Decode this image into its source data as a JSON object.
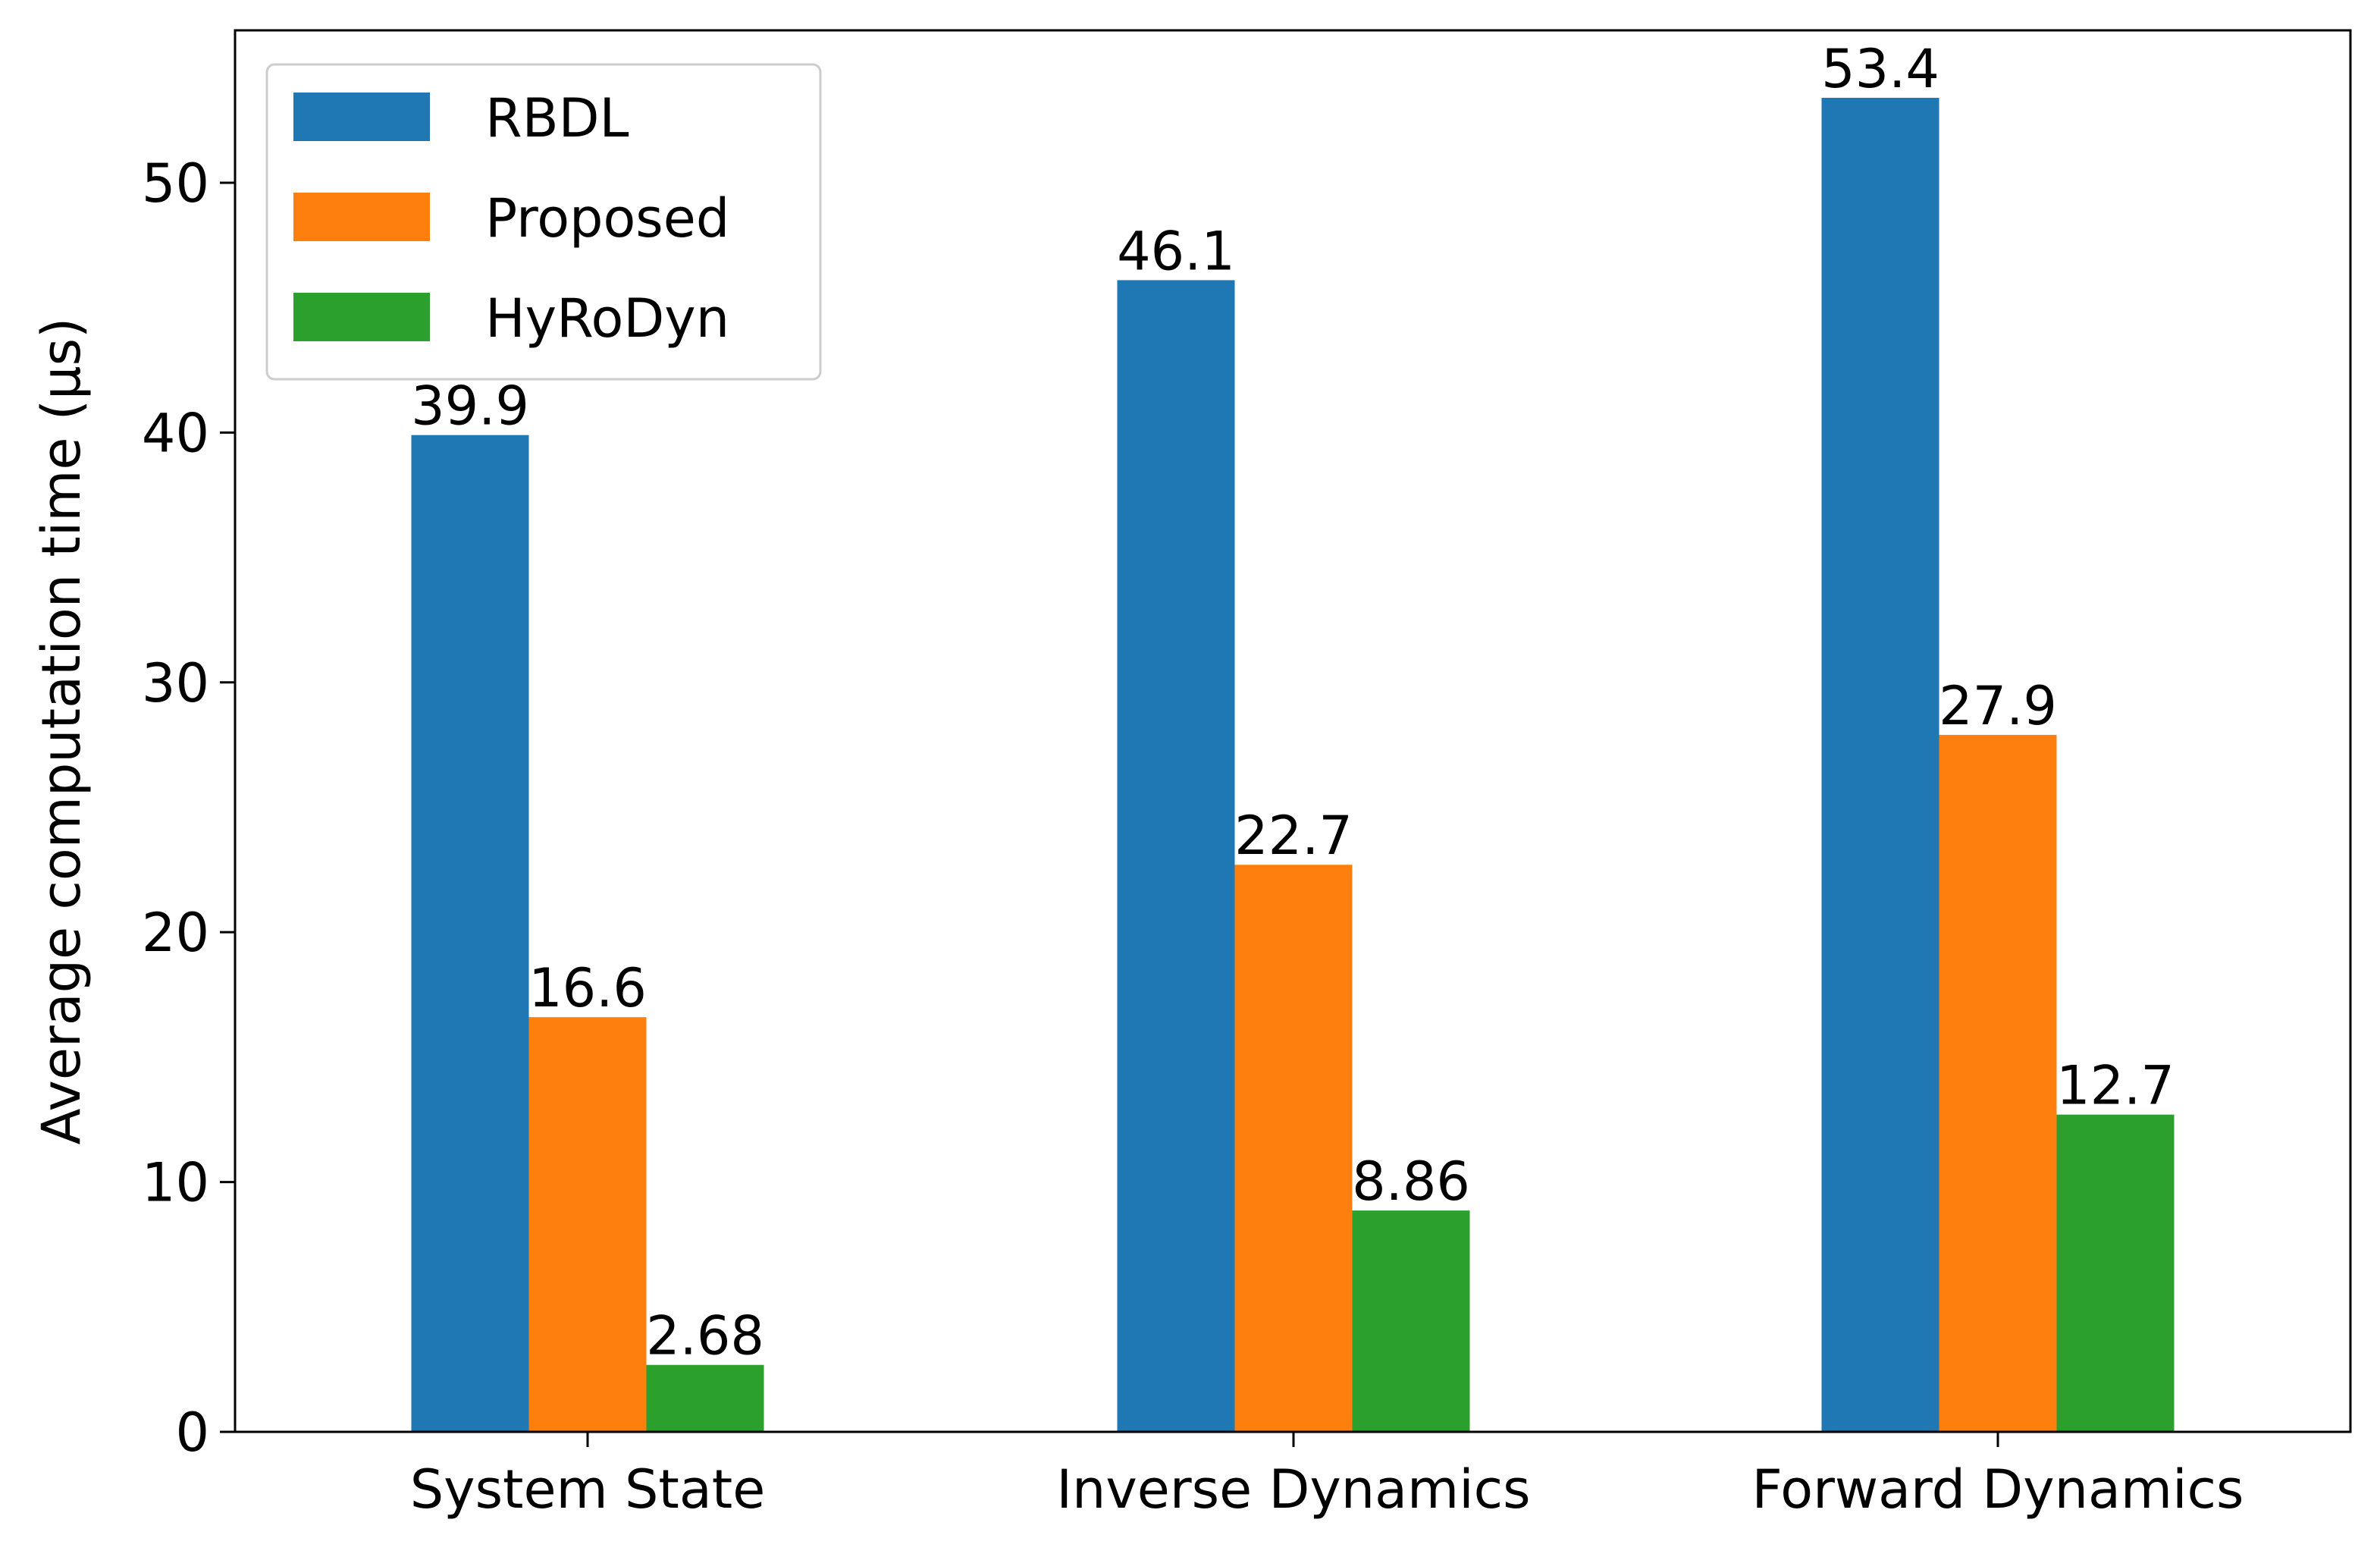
{
  "chart_data": {
    "type": "bar",
    "title": "",
    "xlabel": "",
    "ylabel": "Average computation time (μs)",
    "categories": [
      "System State",
      "Inverse Dynamics",
      "Forward Dynamics"
    ],
    "series": [
      {
        "name": "RBDL",
        "color": "#1f77b4",
        "values": [
          39.9,
          46.1,
          53.4
        ],
        "labels": [
          "39.9",
          "46.1",
          "53.4"
        ]
      },
      {
        "name": "Proposed",
        "color": "#ff7f0e",
        "values": [
          16.6,
          22.7,
          27.9
        ],
        "labels": [
          "16.6",
          "22.7",
          "27.9"
        ]
      },
      {
        "name": "HyRoDyn",
        "color": "#2ca02c",
        "values": [
          2.68,
          8.86,
          12.7
        ],
        "labels": [
          "2.68",
          "8.86",
          "12.7"
        ]
      }
    ],
    "ylim": [
      0,
      56.1
    ],
    "yticks": [
      0,
      10,
      20,
      30,
      40,
      50
    ],
    "grid": false,
    "legend": "top-left"
  }
}
